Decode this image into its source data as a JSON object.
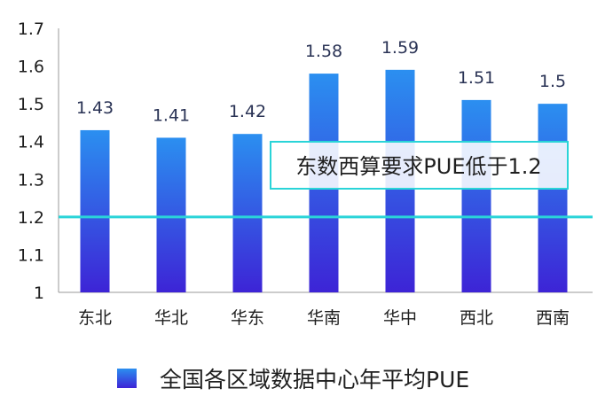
{
  "chart_data": {
    "type": "bar",
    "categories": [
      "东北",
      "华北",
      "华东",
      "华南",
      "华中",
      "西北",
      "西南"
    ],
    "series": [
      {
        "name": "全国各区域数据中心年平均PUE",
        "values": [
          1.43,
          1.41,
          1.42,
          1.58,
          1.59,
          1.51,
          1.5
        ]
      }
    ],
    "data_labels": [
      "1.43",
      "1.41",
      "1.42",
      "1.58",
      "1.59",
      "1.51",
      "1.5"
    ],
    "ylim": [
      1,
      1.7
    ],
    "yticks": [
      "1",
      "1.1",
      "1.2",
      "1.3",
      "1.4",
      "1.5",
      "1.6",
      "1.7"
    ],
    "ytick_values": [
      1,
      1.1,
      1.2,
      1.3,
      1.4,
      1.5,
      1.6,
      1.7
    ],
    "reference_line": {
      "value": 1.2,
      "color": "#2ad4d8"
    },
    "annotation": {
      "text": "东数西算要求PUE低于1.2"
    },
    "legend": {
      "position": "bottom"
    },
    "grid": false,
    "colors": {
      "bar_top": "#2b8ff0",
      "bar_bottom": "#3d24d6",
      "reference": "#2ad4d8"
    }
  }
}
